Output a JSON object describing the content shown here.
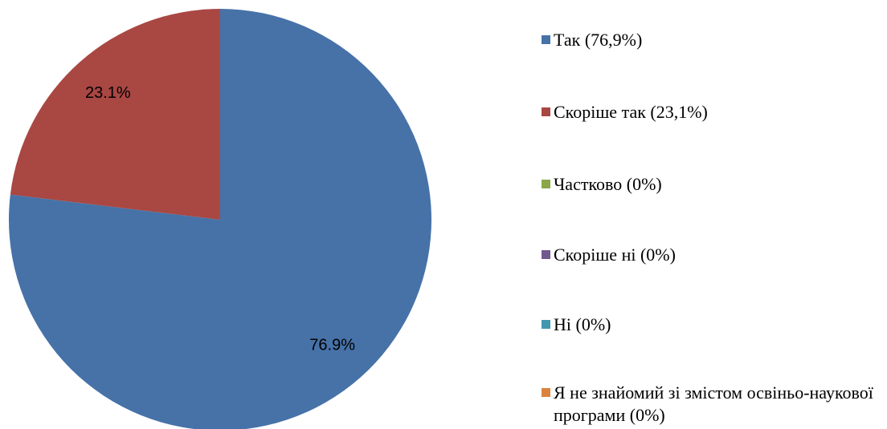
{
  "chart_data": {
    "type": "pie",
    "categories": [
      "Так (76,9%)",
      "Скоріше так (23,1%)",
      "Частково (0%)",
      "Скоріше ні (0%)",
      "Ні (0%)",
      "Я не знайомий зі змістом освіньо-наукової програми (0%)"
    ],
    "values": [
      76.9,
      23.1,
      0,
      0,
      0,
      0
    ],
    "value_labels": [
      "76.9%",
      "23.1%",
      null,
      null,
      null,
      null
    ],
    "colors": [
      "#4672a8",
      "#a94743",
      "#8aa84b",
      "#71588f",
      "#4198af",
      "#db843d"
    ],
    "legend": "right"
  }
}
